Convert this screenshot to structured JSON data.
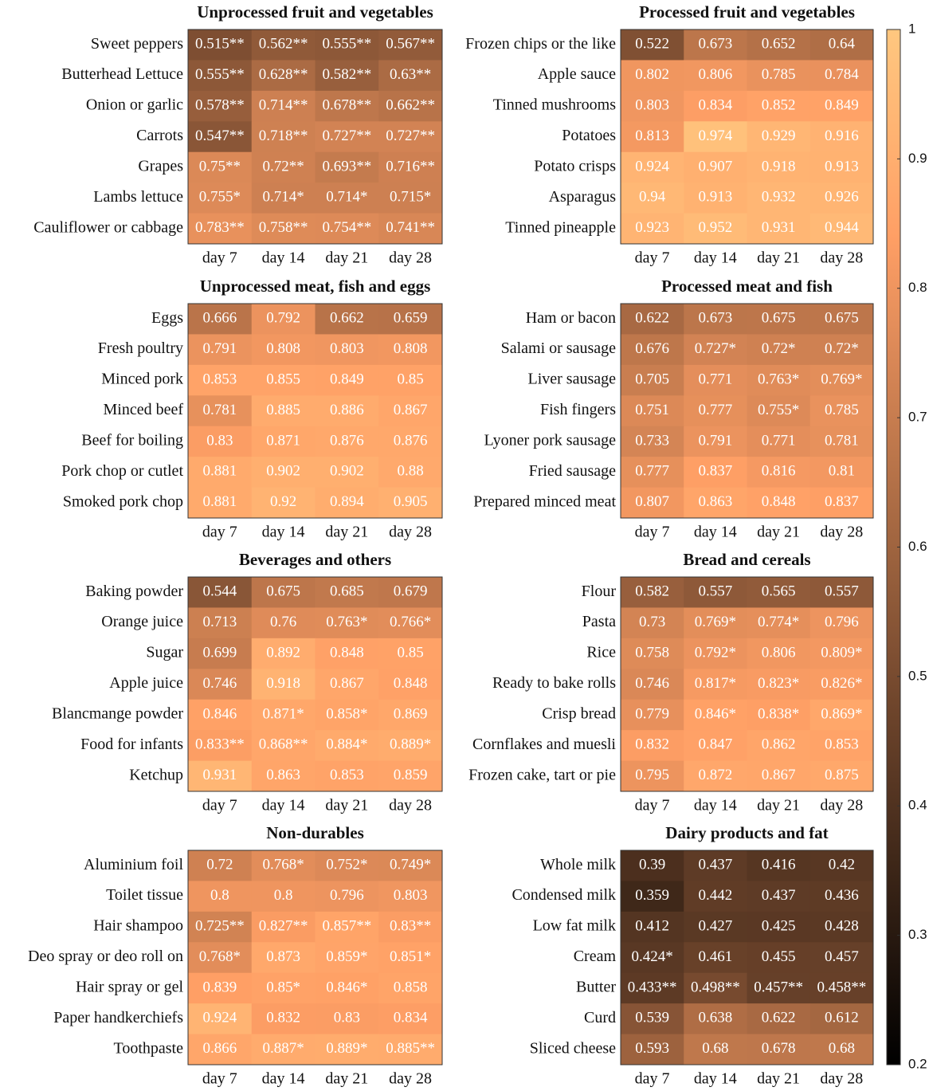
{
  "chart_data": [
    {
      "type": "heatmap",
      "title": "Unprocessed fruit and vegetables",
      "x_categories": [
        "day 7",
        "day 14",
        "day 21",
        "day 28"
      ],
      "y_categories": [
        "Sweet peppers",
        "Butterhead Lettuce",
        "Onion or garlic",
        "Carrots",
        "Grapes",
        "Lambs lettuce",
        "Cauliflower or cabbage"
      ],
      "values": [
        [
          0.515,
          0.562,
          0.555,
          0.567
        ],
        [
          0.555,
          0.628,
          0.582,
          0.63
        ],
        [
          0.578,
          0.714,
          0.678,
          0.662
        ],
        [
          0.547,
          0.718,
          0.727,
          0.727
        ],
        [
          0.75,
          0.72,
          0.693,
          0.716
        ],
        [
          0.755,
          0.714,
          0.714,
          0.715
        ],
        [
          0.783,
          0.758,
          0.754,
          0.741
        ]
      ],
      "value_labels": [
        [
          "0.515**",
          "0.562**",
          "0.555**",
          "0.567**"
        ],
        [
          "0.555**",
          "0.628**",
          "0.582**",
          "0.63**"
        ],
        [
          "0.578**",
          "0.714**",
          "0.678**",
          "0.662**"
        ],
        [
          "0.547**",
          "0.718**",
          "0.727**",
          "0.727**"
        ],
        [
          "0.75**",
          "0.72**",
          "0.693**",
          "0.716**"
        ],
        [
          "0.755*",
          "0.714*",
          "0.714*",
          "0.715*"
        ],
        [
          "0.783**",
          "0.758**",
          "0.754**",
          "0.741**"
        ]
      ]
    },
    {
      "type": "heatmap",
      "title": "Processed fruit and vegetables",
      "x_categories": [
        "day 7",
        "day 14",
        "day 21",
        "day 28"
      ],
      "y_categories": [
        "Frozen chips or the like",
        "Apple sauce",
        "Tinned mushrooms",
        "Potatoes",
        "Potato crisps",
        "Asparagus",
        "Tinned pineapple"
      ],
      "values": [
        [
          0.522,
          0.673,
          0.652,
          0.64
        ],
        [
          0.802,
          0.806,
          0.785,
          0.784
        ],
        [
          0.803,
          0.834,
          0.852,
          0.849
        ],
        [
          0.813,
          0.974,
          0.929,
          0.916
        ],
        [
          0.924,
          0.907,
          0.918,
          0.913
        ],
        [
          0.94,
          0.913,
          0.932,
          0.926
        ],
        [
          0.923,
          0.952,
          0.931,
          0.944
        ]
      ],
      "value_labels": [
        [
          "0.522",
          "0.673",
          "0.652",
          "0.64"
        ],
        [
          "0.802",
          "0.806",
          "0.785",
          "0.784"
        ],
        [
          "0.803",
          "0.834",
          "0.852",
          "0.849"
        ],
        [
          "0.813",
          "0.974",
          "0.929",
          "0.916"
        ],
        [
          "0.924",
          "0.907",
          "0.918",
          "0.913"
        ],
        [
          "0.94",
          "0.913",
          "0.932",
          "0.926"
        ],
        [
          "0.923",
          "0.952",
          "0.931",
          "0.944"
        ]
      ]
    },
    {
      "type": "heatmap",
      "title": "Unprocessed meat, fish and eggs",
      "x_categories": [
        "day 7",
        "day 14",
        "day 21",
        "day 28"
      ],
      "y_categories": [
        "Eggs",
        "Fresh poultry",
        "Minced pork",
        "Minced beef",
        "Beef for boiling",
        "Pork chop or cutlet",
        "Smoked pork chop"
      ],
      "values": [
        [
          0.666,
          0.792,
          0.662,
          0.659
        ],
        [
          0.791,
          0.808,
          0.803,
          0.808
        ],
        [
          0.853,
          0.855,
          0.849,
          0.85
        ],
        [
          0.781,
          0.885,
          0.886,
          0.867
        ],
        [
          0.83,
          0.871,
          0.876,
          0.876
        ],
        [
          0.881,
          0.902,
          0.902,
          0.88
        ],
        [
          0.881,
          0.92,
          0.894,
          0.905
        ]
      ],
      "value_labels": [
        [
          "0.666",
          "0.792",
          "0.662",
          "0.659"
        ],
        [
          "0.791",
          "0.808",
          "0.803",
          "0.808"
        ],
        [
          "0.853",
          "0.855",
          "0.849",
          "0.85"
        ],
        [
          "0.781",
          "0.885",
          "0.886",
          "0.867"
        ],
        [
          "0.83",
          "0.871",
          "0.876",
          "0.876"
        ],
        [
          "0.881",
          "0.902",
          "0.902",
          "0.88"
        ],
        [
          "0.881",
          "0.92",
          "0.894",
          "0.905"
        ]
      ]
    },
    {
      "type": "heatmap",
      "title": "Processed meat and fish",
      "x_categories": [
        "day 7",
        "day 14",
        "day 21",
        "day 28"
      ],
      "y_categories": [
        "Ham or bacon",
        "Salami or sausage",
        "Liver sausage",
        "Fish fingers",
        "Lyoner pork sausage",
        "Fried sausage",
        "Prepared minced meat"
      ],
      "values": [
        [
          0.622,
          0.673,
          0.675,
          0.675
        ],
        [
          0.676,
          0.727,
          0.72,
          0.72
        ],
        [
          0.705,
          0.771,
          0.763,
          0.769
        ],
        [
          0.751,
          0.777,
          0.755,
          0.785
        ],
        [
          0.733,
          0.791,
          0.771,
          0.781
        ],
        [
          0.777,
          0.837,
          0.816,
          0.81
        ],
        [
          0.807,
          0.863,
          0.848,
          0.837
        ]
      ],
      "value_labels": [
        [
          "0.622",
          "0.673",
          "0.675",
          "0.675"
        ],
        [
          "0.676",
          "0.727*",
          "0.72*",
          "0.72*"
        ],
        [
          "0.705",
          "0.771",
          "0.763*",
          "0.769*"
        ],
        [
          "0.751",
          "0.777",
          "0.755*",
          "0.785"
        ],
        [
          "0.733",
          "0.791",
          "0.771",
          "0.781"
        ],
        [
          "0.777",
          "0.837",
          "0.816",
          "0.81"
        ],
        [
          "0.807",
          "0.863",
          "0.848",
          "0.837"
        ]
      ]
    },
    {
      "type": "heatmap",
      "title": "Beverages and others",
      "x_categories": [
        "day 7",
        "day 14",
        "day 21",
        "day 28"
      ],
      "y_categories": [
        "Baking powder",
        "Orange juice",
        "Sugar",
        "Apple juice",
        "Blancmange powder",
        "Food for infants",
        "Ketchup"
      ],
      "values": [
        [
          0.544,
          0.675,
          0.685,
          0.679
        ],
        [
          0.713,
          0.76,
          0.763,
          0.766
        ],
        [
          0.699,
          0.892,
          0.848,
          0.85
        ],
        [
          0.746,
          0.918,
          0.867,
          0.848
        ],
        [
          0.846,
          0.871,
          0.858,
          0.869
        ],
        [
          0.833,
          0.868,
          0.884,
          0.889
        ],
        [
          0.931,
          0.863,
          0.853,
          0.859
        ]
      ],
      "value_labels": [
        [
          "0.544",
          "0.675",
          "0.685",
          "0.679"
        ],
        [
          "0.713",
          "0.76",
          "0.763*",
          "0.766*"
        ],
        [
          "0.699",
          "0.892",
          "0.848",
          "0.85"
        ],
        [
          "0.746",
          "0.918",
          "0.867",
          "0.848"
        ],
        [
          "0.846",
          "0.871*",
          "0.858*",
          "0.869"
        ],
        [
          "0.833**",
          "0.868**",
          "0.884*",
          "0.889*"
        ],
        [
          "0.931",
          "0.863",
          "0.853",
          "0.859"
        ]
      ]
    },
    {
      "type": "heatmap",
      "title": "Bread and cereals",
      "x_categories": [
        "day 7",
        "day 14",
        "day 21",
        "day 28"
      ],
      "y_categories": [
        "Flour",
        "Pasta",
        "Rice",
        "Ready to bake rolls",
        "Crisp bread",
        "Cornflakes and muesli",
        "Frozen cake, tart or pie"
      ],
      "values": [
        [
          0.582,
          0.557,
          0.565,
          0.557
        ],
        [
          0.73,
          0.769,
          0.774,
          0.796
        ],
        [
          0.758,
          0.792,
          0.806,
          0.809
        ],
        [
          0.746,
          0.817,
          0.823,
          0.826
        ],
        [
          0.779,
          0.846,
          0.838,
          0.869
        ],
        [
          0.832,
          0.847,
          0.862,
          0.853
        ],
        [
          0.795,
          0.872,
          0.867,
          0.875
        ]
      ],
      "value_labels": [
        [
          "0.582",
          "0.557",
          "0.565",
          "0.557"
        ],
        [
          "0.73",
          "0.769*",
          "0.774*",
          "0.796"
        ],
        [
          "0.758",
          "0.792*",
          "0.806",
          "0.809*"
        ],
        [
          "0.746",
          "0.817*",
          "0.823*",
          "0.826*"
        ],
        [
          "0.779",
          "0.846*",
          "0.838*",
          "0.869*"
        ],
        [
          "0.832",
          "0.847",
          "0.862",
          "0.853"
        ],
        [
          "0.795",
          "0.872",
          "0.867",
          "0.875"
        ]
      ]
    },
    {
      "type": "heatmap",
      "title": "Non-durables",
      "x_categories": [
        "day 7",
        "day 14",
        "day 21",
        "day 28"
      ],
      "y_categories": [
        "Aluminium foil",
        "Toilet tissue",
        "Hair shampoo",
        "Deo spray or deo roll on",
        "Hair spray or gel",
        "Paper handkerchiefs",
        "Toothpaste"
      ],
      "values": [
        [
          0.72,
          0.768,
          0.752,
          0.749
        ],
        [
          0.8,
          0.8,
          0.796,
          0.803
        ],
        [
          0.725,
          0.827,
          0.857,
          0.83
        ],
        [
          0.768,
          0.873,
          0.859,
          0.851
        ],
        [
          0.839,
          0.85,
          0.846,
          0.858
        ],
        [
          0.924,
          0.832,
          0.83,
          0.834
        ],
        [
          0.866,
          0.887,
          0.889,
          0.885
        ]
      ],
      "value_labels": [
        [
          "0.72",
          "0.768*",
          "0.752*",
          "0.749*"
        ],
        [
          "0.8",
          "0.8",
          "0.796",
          "0.803"
        ],
        [
          "0.725**",
          "0.827**",
          "0.857**",
          "0.83**"
        ],
        [
          "0.768*",
          "0.873",
          "0.859*",
          "0.851*"
        ],
        [
          "0.839",
          "0.85*",
          "0.846*",
          "0.858"
        ],
        [
          "0.924",
          "0.832",
          "0.83",
          "0.834"
        ],
        [
          "0.866",
          "0.887*",
          "0.889*",
          "0.885**"
        ]
      ]
    },
    {
      "type": "heatmap",
      "title": "Dairy products and fat",
      "x_categories": [
        "day 7",
        "day 14",
        "day 21",
        "day 28"
      ],
      "y_categories": [
        "Whole milk",
        "Condensed milk",
        "Low fat milk",
        "Cream",
        "Butter",
        "Curd",
        "Sliced cheese"
      ],
      "values": [
        [
          0.39,
          0.437,
          0.416,
          0.42
        ],
        [
          0.359,
          0.442,
          0.437,
          0.436
        ],
        [
          0.412,
          0.427,
          0.425,
          0.428
        ],
        [
          0.424,
          0.461,
          0.455,
          0.457
        ],
        [
          0.433,
          0.498,
          0.457,
          0.458
        ],
        [
          0.539,
          0.638,
          0.622,
          0.612
        ],
        [
          0.593,
          0.68,
          0.678,
          0.68
        ]
      ],
      "value_labels": [
        [
          "0.39",
          "0.437",
          "0.416",
          "0.42"
        ],
        [
          "0.359",
          "0.442",
          "0.437",
          "0.436"
        ],
        [
          "0.412",
          "0.427",
          "0.425",
          "0.428"
        ],
        [
          "0.424*",
          "0.461",
          "0.455",
          "0.457"
        ],
        [
          "0.433**",
          "0.498**",
          "0.457**",
          "0.458**"
        ],
        [
          "0.539",
          "0.638",
          "0.622",
          "0.612"
        ],
        [
          "0.593",
          "0.68",
          "0.678",
          "0.68"
        ]
      ]
    }
  ],
  "colorbar": {
    "colormap": "copper",
    "clim": [
      0.2,
      1
    ],
    "ticks": [
      0.2,
      0.3,
      0.4,
      0.5,
      0.6,
      0.7,
      0.8,
      0.9,
      1
    ]
  }
}
